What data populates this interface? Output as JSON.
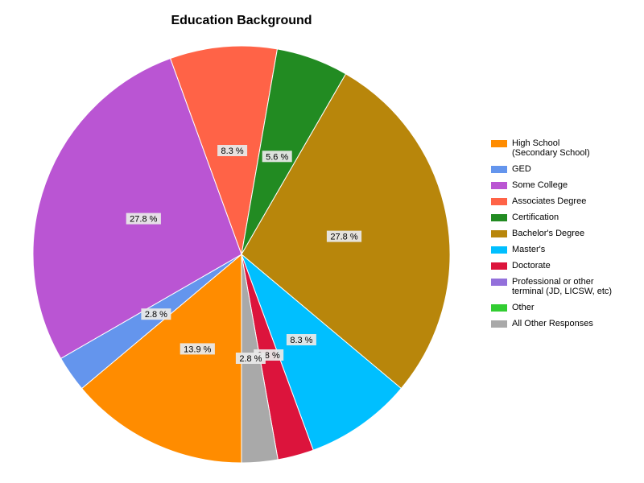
{
  "chart_data": {
    "type": "pie",
    "title": "Education Background",
    "start_angle_deg": 0,
    "direction": "clockwise",
    "legend_position": "right",
    "slices": [
      {
        "label": "High School\n(Secondary School)",
        "value": 13.9,
        "display": "13.9 %",
        "color": "#FF8C00"
      },
      {
        "label": "GED",
        "value": 2.8,
        "display": "2.8 %",
        "color": "#6495ED"
      },
      {
        "label": "Some College",
        "value": 27.8,
        "display": "27.8 %",
        "color": "#BA55D3"
      },
      {
        "label": "Associates Degree",
        "value": 8.3,
        "display": "8.3 %",
        "color": "#FF6347"
      },
      {
        "label": "Certification",
        "value": 5.6,
        "display": "5.6 %",
        "color": "#228B22"
      },
      {
        "label": "Bachelor's Degree",
        "value": 27.8,
        "display": "27.8 %",
        "color": "#B8860B"
      },
      {
        "label": "Master's",
        "value": 8.3,
        "display": "8.3 %",
        "color": "#00BFFF"
      },
      {
        "label": "Doctorate",
        "value": 2.8,
        "display": "2.8 %",
        "color": "#DC143C"
      },
      {
        "label": "Professional or other\nterminal (JD, LICSW, etc)",
        "value": 0,
        "display": "",
        "color": "#9370DB"
      },
      {
        "label": "Other",
        "value": 0,
        "display": "",
        "color": "#32CD32"
      },
      {
        "label": "All Other Responses",
        "value": 2.8,
        "display": "2.8 %",
        "color": "#A9A9A9"
      }
    ]
  }
}
